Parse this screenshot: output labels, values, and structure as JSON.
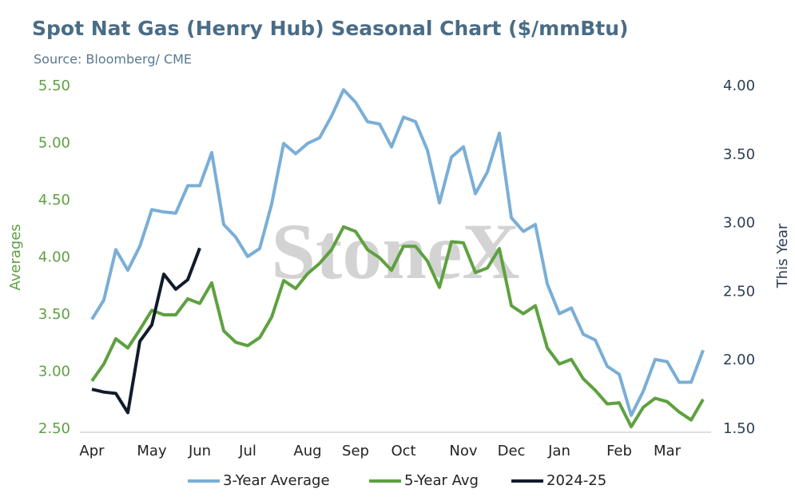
{
  "chart_data": {
    "type": "line",
    "title": "Spot Nat Gas (Henry Hub) Seasonal Chart ($/mmBtu)",
    "subtitle": "Source: Bloomberg/ CME",
    "watermark": "StoneX",
    "ylabel": "Averages",
    "y2label": "This Year",
    "categories": [
      "Apr",
      null,
      null,
      null,
      null,
      "May",
      null,
      null,
      null,
      "Jun",
      null,
      null,
      null,
      "Jul",
      null,
      null,
      null,
      null,
      "Aug",
      null,
      null,
      null,
      "Sep",
      null,
      null,
      null,
      "Oct",
      null,
      null,
      null,
      null,
      "Nov",
      null,
      null,
      null,
      "Dec",
      null,
      null,
      null,
      "Jan",
      null,
      null,
      null,
      null,
      "Feb",
      null,
      null,
      null,
      "Mar",
      null,
      null,
      null
    ],
    "ylim": [
      2.5,
      5.5
    ],
    "yticks": [
      {
        "value": 2.5,
        "label": "2.50"
      },
      {
        "value": 3,
        "label": "3.00"
      },
      {
        "value": 3.5,
        "label": "3.50"
      },
      {
        "value": 4,
        "label": "4.00"
      },
      {
        "value": 4.5,
        "label": "4.50"
      },
      {
        "value": 5,
        "label": "5.00"
      },
      {
        "value": 5.5,
        "label": "5.50"
      }
    ],
    "y2lim": [
      1.5,
      4.0
    ],
    "y2ticks": [
      {
        "value": 1.5,
        "label": "1.50"
      },
      {
        "value": 2,
        "label": "2.00"
      },
      {
        "value": 2.5,
        "label": "2.50"
      },
      {
        "value": 3,
        "label": "3.00"
      },
      {
        "value": 3.5,
        "label": "3.50"
      },
      {
        "value": 4,
        "label": "4.00"
      }
    ],
    "legend": "bottom",
    "series": [
      {
        "name": "3-Year Average",
        "color": "#7aaed6",
        "values": [
          3.46,
          3.63,
          4.07,
          3.89,
          4.1,
          4.42,
          4.4,
          4.39,
          4.63,
          4.63,
          4.92,
          4.29,
          4.18,
          4.01,
          4.08,
          4.47,
          5.0,
          4.91,
          5.0,
          5.05,
          5.24,
          5.47,
          5.36,
          5.19,
          5.17,
          4.97,
          5.23,
          5.19,
          4.94,
          4.48,
          4.88,
          4.97,
          4.56,
          4.75,
          5.09,
          4.35,
          4.23,
          4.29,
          3.77,
          3.51,
          3.56,
          3.33,
          3.28,
          3.05,
          2.98,
          2.62,
          2.83,
          3.11,
          3.09,
          2.91,
          2.91,
          3.19
        ]
      },
      {
        "name": "5-Year Avg",
        "color": "#5ea140",
        "values": [
          2.92,
          3.07,
          3.29,
          3.21,
          3.37,
          3.54,
          3.5,
          3.5,
          3.64,
          3.6,
          3.78,
          3.36,
          3.26,
          3.23,
          3.3,
          3.48,
          3.8,
          3.73,
          3.86,
          3.95,
          4.07,
          4.27,
          4.23,
          4.07,
          4.0,
          3.89,
          4.1,
          4.1,
          3.97,
          3.74,
          4.14,
          4.13,
          3.87,
          3.91,
          4.08,
          3.58,
          3.51,
          3.58,
          3.21,
          3.07,
          3.11,
          2.94,
          2.84,
          2.72,
          2.73,
          2.52,
          2.69,
          2.77,
          2.74,
          2.65,
          2.58,
          2.76
        ]
      },
      {
        "name": "2024-25",
        "color": "#111c2b",
        "axis": "y2",
        "values": [
          1.79,
          1.77,
          1.76,
          1.62,
          2.14,
          2.26,
          2.63,
          2.52,
          2.59,
          2.82,
          null,
          null,
          null,
          null,
          null,
          null,
          null,
          null,
          null,
          null,
          null,
          null,
          null,
          null,
          null,
          null,
          null,
          null,
          null,
          null,
          null,
          null,
          null,
          null,
          null,
          null,
          null,
          null,
          null,
          null,
          null,
          null,
          null,
          null,
          null,
          null,
          null,
          null,
          null,
          null,
          null,
          null
        ]
      }
    ]
  }
}
